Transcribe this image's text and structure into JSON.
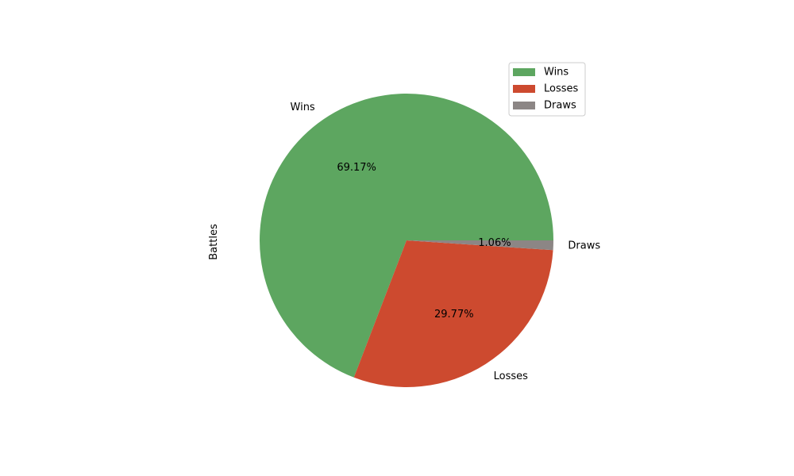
{
  "chart_data": {
    "type": "pie",
    "ylabel": "Battles",
    "categories": [
      "Wins",
      "Losses",
      "Draws"
    ],
    "values": [
      69.17,
      29.77,
      1.06
    ],
    "pct_labels": [
      "69.17%",
      "29.77%",
      "1.06%"
    ],
    "colors": [
      "#5da660",
      "#cd4a2f",
      "#8c8685"
    ],
    "start_angle": 0,
    "direction": "counterclockwise",
    "legend": {
      "position": "top-right",
      "entries": [
        "Wins",
        "Losses",
        "Draws"
      ]
    }
  }
}
